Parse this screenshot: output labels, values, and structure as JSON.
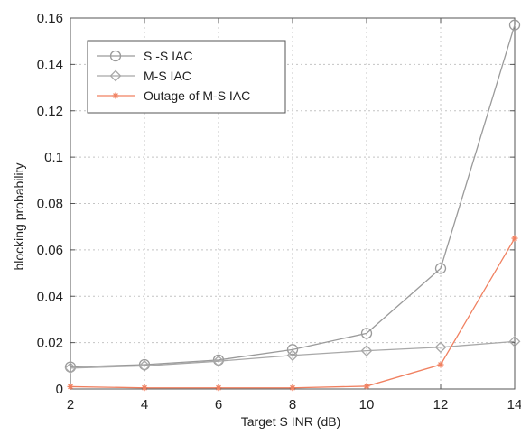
{
  "chart_data": {
    "type": "line",
    "title": "",
    "xlabel": "Target S INR (dB)",
    "ylabel": "blocking probability",
    "x": [
      2,
      4,
      6,
      8,
      10,
      12,
      14
    ],
    "xlim": [
      2,
      14
    ],
    "ylim": [
      0,
      0.16
    ],
    "xticks": [
      2,
      4,
      6,
      8,
      10,
      12,
      14
    ],
    "yticks": [
      0,
      0.02,
      0.04,
      0.06,
      0.08,
      0.1,
      0.12,
      0.14,
      0.16
    ],
    "ytick_labels": [
      "0",
      "0.02",
      "0.04",
      "0.06",
      "0.08",
      "0.1",
      "0.12",
      "0.14",
      "0.16"
    ],
    "grid": true,
    "legend_position": "top-left",
    "series": [
      {
        "name": "S -S IAC",
        "values": [
          0.0095,
          0.0105,
          0.0125,
          0.017,
          0.024,
          0.052,
          0.157
        ],
        "color": "#9a9a9a",
        "marker": "circle"
      },
      {
        "name": "M-S IAC",
        "values": [
          0.009,
          0.01,
          0.012,
          0.0145,
          0.0165,
          0.018,
          0.0205
        ],
        "color": "#a8a8a8",
        "marker": "diamond"
      },
      {
        "name": "Outage of M-S IAC",
        "values": [
          0.001,
          0.0005,
          0.0005,
          0.0005,
          0.0012,
          0.0105,
          0.065
        ],
        "color": "#f08060",
        "marker": "star"
      }
    ]
  }
}
